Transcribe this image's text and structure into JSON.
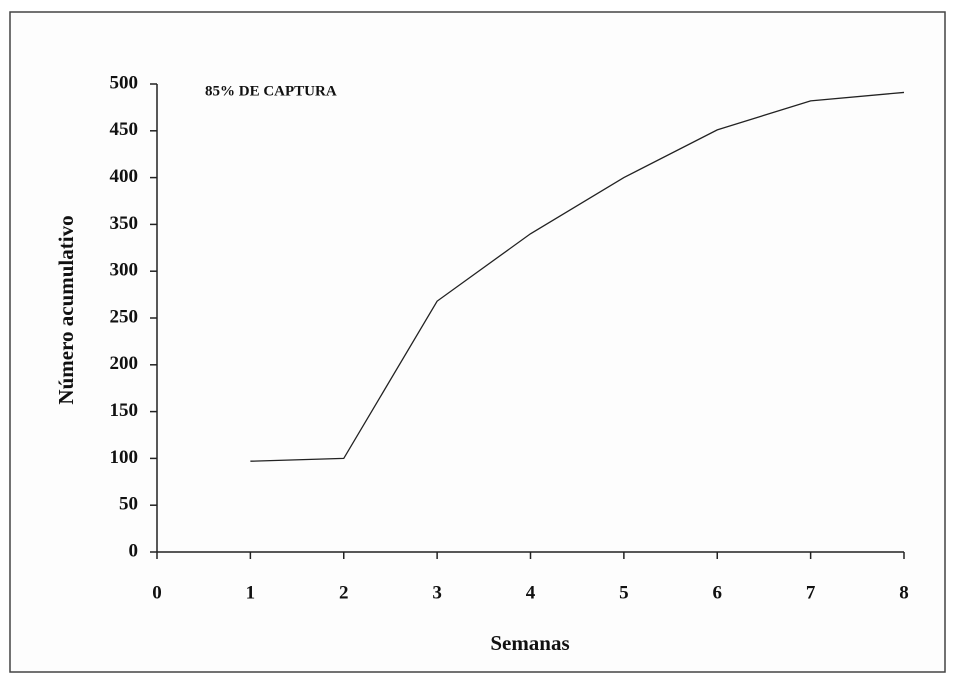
{
  "chart_data": {
    "type": "line",
    "annotation": "85% DE CAPTURA",
    "x_label": "Semanas",
    "y_label": "Número acumulativo",
    "x": [
      1,
      2,
      3,
      4,
      5,
      6,
      7,
      8
    ],
    "series": [
      {
        "color": "#222222",
        "values": [
          97,
          100,
          268,
          340,
          400,
          451,
          482,
          491
        ]
      }
    ],
    "xlim": [
      0,
      8
    ],
    "xticks": [
      0,
      1,
      2,
      3,
      4,
      5,
      6,
      7,
      8
    ],
    "ylim": [
      0,
      500
    ],
    "yticks": [
      0,
      50,
      100,
      150,
      200,
      250,
      300,
      350,
      400,
      450,
      500
    ],
    "grid": false
  }
}
